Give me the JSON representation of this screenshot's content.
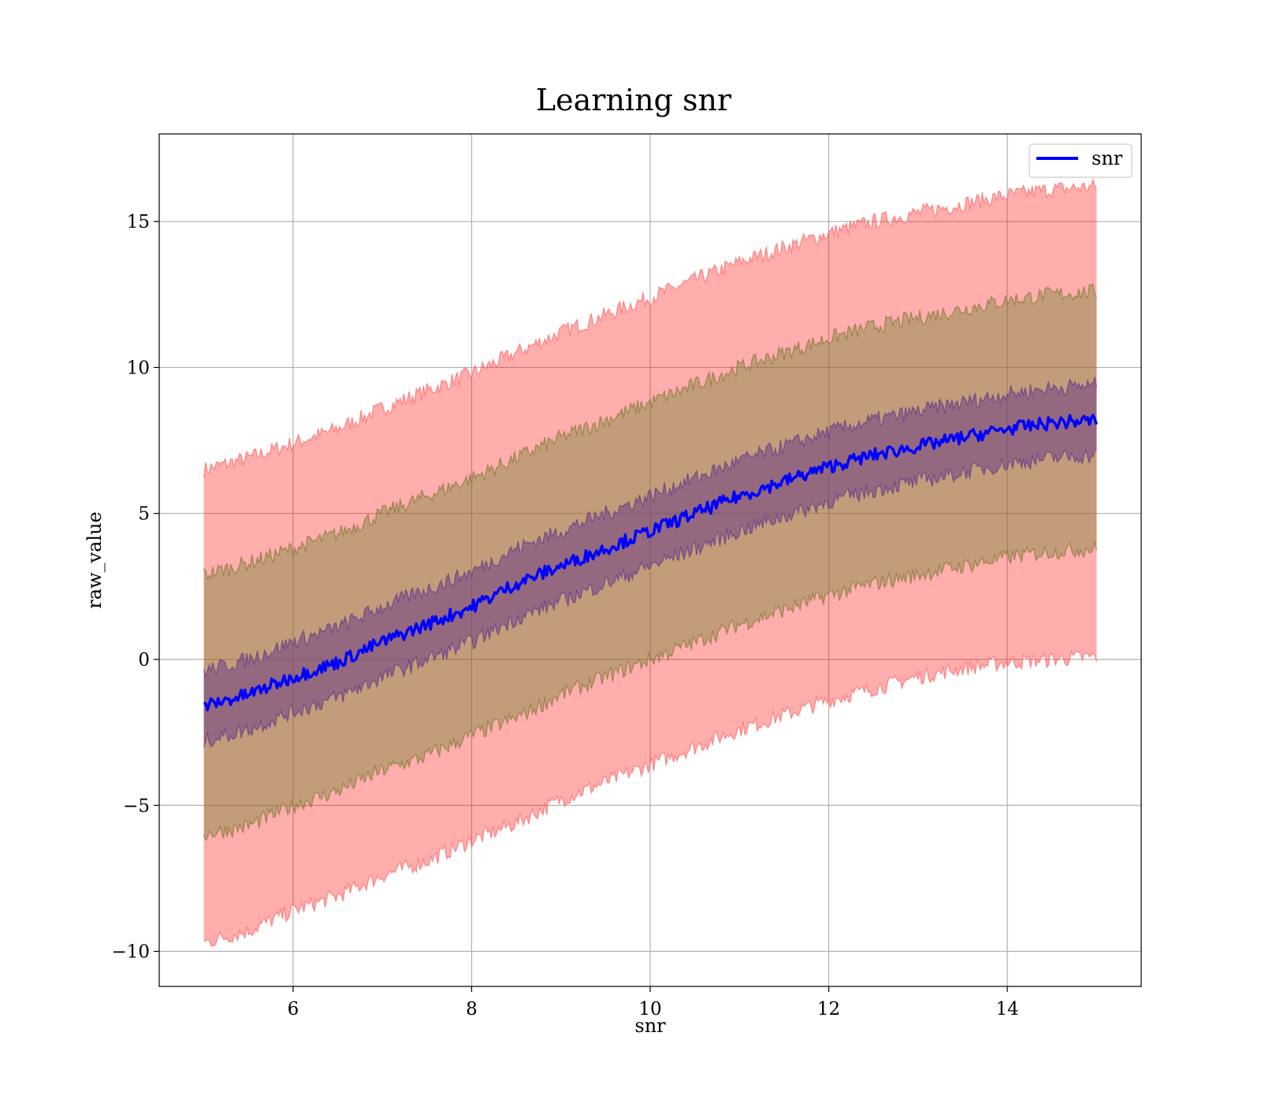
{
  "chart_data": {
    "type": "line",
    "title": "Learning snr",
    "xlabel": "snr",
    "ylabel": "raw_value",
    "xlim": [
      4.5,
      15.5
    ],
    "ylim": [
      -11.2,
      18.0
    ],
    "x_ticks": [
      6,
      8,
      10,
      12,
      14
    ],
    "x_tick_labels": [
      "6",
      "8",
      "10",
      "12",
      "14"
    ],
    "y_ticks": [
      -10,
      -5,
      0,
      5,
      10,
      15
    ],
    "y_tick_labels": [
      "−10",
      "−5",
      "0",
      "5",
      "10",
      "15"
    ],
    "grid": true,
    "legend": {
      "position": "top-right",
      "entries": [
        "snr"
      ]
    },
    "colors": {
      "mean_line": "#0000ff",
      "band_outer_fill": "#ff0000",
      "band_outer_edge": "#ff6b6b",
      "band_middle_fill": "#7a8a3a",
      "band_middle_edge": "#8a7a3a",
      "band_inner_fill": "#5a2a8a",
      "band_inner_edge": "#6a3a8a",
      "grid": "#b0b0b0"
    },
    "series": [
      {
        "name": "snr",
        "x": [
          5,
          5.5,
          6,
          6.5,
          7,
          7.5,
          8,
          8.5,
          9,
          9.5,
          10,
          10.5,
          11,
          11.5,
          12,
          12.5,
          13,
          13.5,
          14,
          14.5,
          15
        ],
        "y": [
          -1.6,
          -1.2,
          -0.6,
          -0.1,
          0.6,
          1.2,
          1.8,
          2.6,
          3.2,
          3.8,
          4.4,
          5.0,
          5.6,
          6.1,
          6.6,
          7.0,
          7.3,
          7.6,
          7.9,
          8.1,
          8.2
        ]
      }
    ],
    "bands": [
      {
        "level": "outer",
        "x": [
          5,
          5.5,
          6,
          6.5,
          7,
          7.5,
          8,
          8.5,
          9,
          9.5,
          10,
          10.5,
          11,
          11.5,
          12,
          12.5,
          13,
          13.5,
          14,
          14.5,
          15
        ],
        "lower": [
          -9.7,
          -9.3,
          -8.6,
          -8.1,
          -7.4,
          -6.9,
          -6.2,
          -5.6,
          -4.8,
          -4.2,
          -3.6,
          -3.0,
          -2.4,
          -1.9,
          -1.4,
          -1.0,
          -0.6,
          -0.3,
          -0.1,
          0.0,
          0.1
        ],
        "upper": [
          6.5,
          6.9,
          7.4,
          7.9,
          8.6,
          9.2,
          9.8,
          10.5,
          11.2,
          11.8,
          12.4,
          13.0,
          13.6,
          14.1,
          14.6,
          15.0,
          15.3,
          15.6,
          15.9,
          16.1,
          16.2
        ]
      },
      {
        "level": "middle",
        "x": [
          5,
          5.5,
          6,
          6.5,
          7,
          7.5,
          8,
          8.5,
          9,
          9.5,
          10,
          10.5,
          11,
          11.5,
          12,
          12.5,
          13,
          13.5,
          14,
          14.5,
          15
        ],
        "lower": [
          -6.0,
          -5.7,
          -5.0,
          -4.5,
          -3.8,
          -3.3,
          -2.6,
          -2.0,
          -1.2,
          -0.6,
          0.0,
          0.6,
          1.2,
          1.7,
          2.2,
          2.6,
          2.9,
          3.2,
          3.5,
          3.7,
          3.8
        ],
        "upper": [
          2.9,
          3.3,
          3.8,
          4.3,
          5.0,
          5.6,
          6.2,
          6.9,
          7.6,
          8.2,
          8.8,
          9.4,
          10.0,
          10.5,
          11.0,
          11.4,
          11.7,
          12.0,
          12.3,
          12.5,
          12.6
        ]
      },
      {
        "level": "inner",
        "x": [
          5,
          5.5,
          6,
          6.5,
          7,
          7.5,
          8,
          8.5,
          9,
          9.5,
          10,
          10.5,
          11,
          11.5,
          12,
          12.5,
          13,
          13.5,
          14,
          14.5,
          15
        ],
        "lower": [
          -2.8,
          -2.4,
          -1.8,
          -1.3,
          -0.6,
          0.0,
          0.6,
          1.4,
          2.0,
          2.6,
          3.2,
          3.8,
          4.4,
          4.9,
          5.4,
          5.8,
          6.1,
          6.4,
          6.7,
          6.9,
          7.0
        ],
        "upper": [
          -0.4,
          0.0,
          0.6,
          1.1,
          1.8,
          2.4,
          3.0,
          3.8,
          4.4,
          5.0,
          5.6,
          6.2,
          6.8,
          7.3,
          7.8,
          8.2,
          8.5,
          8.8,
          9.1,
          9.3,
          9.4
        ]
      }
    ]
  }
}
